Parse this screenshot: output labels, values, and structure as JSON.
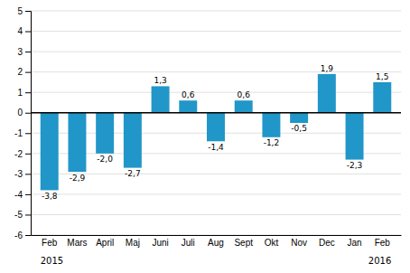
{
  "chart_data": {
    "type": "bar",
    "categories": [
      "Feb",
      "Mars",
      "April",
      "Maj",
      "Juni",
      "Juli",
      "Aug",
      "Sept",
      "Okt",
      "Nov",
      "Dec",
      "Jan",
      "Feb"
    ],
    "values": [
      -3.8,
      -2.9,
      -2.0,
      -2.7,
      1.3,
      0.6,
      -1.4,
      0.6,
      -1.2,
      -0.5,
      1.9,
      -2.3,
      1.5
    ],
    "value_labels": [
      "-3,8",
      "-2,9",
      "-2,0",
      "-2,7",
      "1,3",
      "0,6",
      "-1,4",
      "0,6",
      "-1,2",
      "-0,5",
      "1,9",
      "-2,3",
      "1,5"
    ],
    "data_labels": true,
    "color": "#2196c8",
    "ylim": [
      -6,
      5
    ],
    "yticks": [
      -6,
      -5,
      -4,
      -3,
      -2,
      -1,
      0,
      1,
      2,
      3,
      4,
      5
    ],
    "grid": true,
    "annotations": [
      "2015",
      "2016"
    ]
  }
}
